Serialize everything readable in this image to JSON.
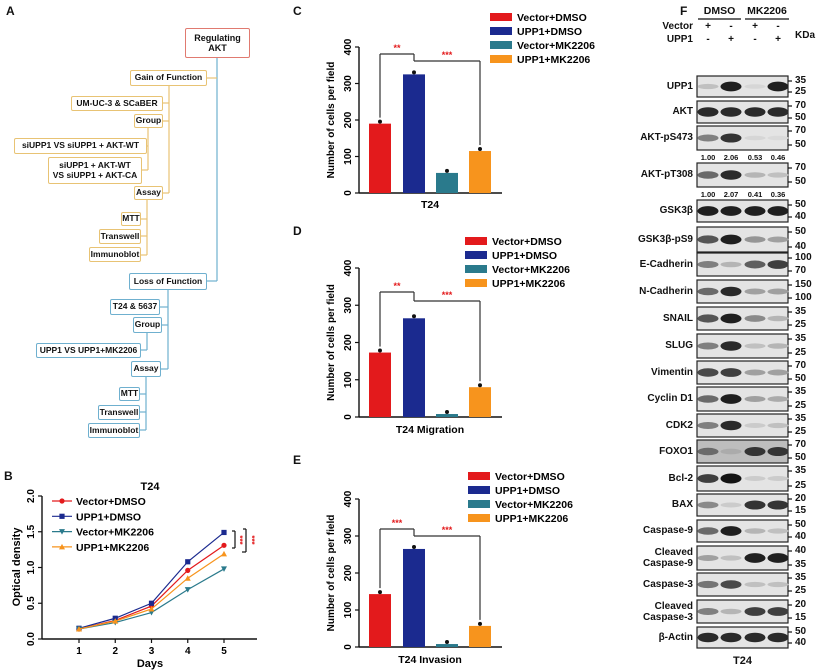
{
  "panel_labels": [
    "A",
    "B",
    "C",
    "D",
    "E",
    "F"
  ],
  "panel_a": {
    "boxes": [
      {
        "text": "Regulating\nAKT",
        "group": "root"
      },
      {
        "text": "Gain of Function",
        "group": "gain"
      },
      {
        "text": "UM-UC-3 & SCaBER",
        "group": "gain"
      },
      {
        "text": "Group",
        "group": "gain"
      },
      {
        "text": "siUPP1 VS siUPP1 + AKT-WT",
        "group": "gain"
      },
      {
        "text": "siUPP1 + AKT-WT\nVS siUPP1 + AKT-CA",
        "group": "gain"
      },
      {
        "text": "Assay",
        "group": "gain"
      },
      {
        "text": "MTT",
        "group": "gain"
      },
      {
        "text": "Transwell",
        "group": "gain"
      },
      {
        "text": "Immunoblot",
        "group": "gain"
      },
      {
        "text": "Loss of Function",
        "group": "loss"
      },
      {
        "text": "T24 & 5637",
        "group": "loss"
      },
      {
        "text": "Group",
        "group": "loss"
      },
      {
        "text": "UPP1 VS UPP1+MK2206",
        "group": "loss"
      },
      {
        "text": "Assay",
        "group": "loss"
      },
      {
        "text": "MTT",
        "group": "loss"
      },
      {
        "text": "Transwell",
        "group": "loss"
      },
      {
        "text": "Immunoblot",
        "group": "loss"
      }
    ],
    "colors": {
      "root": "#e07a70",
      "gain": "#e8c374",
      "loss": "#6fb0cf"
    }
  },
  "colors": {
    "Vector+DMSO": "#e31a1c",
    "UPP1+DMSO": "#1b2a8f",
    "Vector+MK2206": "#2a7a8c",
    "UPP1+MK2206": "#f7941d",
    "significance": "#e31a1c"
  },
  "chart_data": [
    {
      "panel": "B",
      "type": "line",
      "title": "T24",
      "xlabel": "Days",
      "ylabel": "Optical density",
      "x": [
        1,
        2,
        3,
        4,
        5
      ],
      "xticks": [
        "1",
        "2",
        "3",
        "4",
        "5"
      ],
      "yticks": [
        "0.0",
        "0.5",
        "1.0",
        "1.5",
        "2.0"
      ],
      "ylim": [
        0,
        2
      ],
      "legend": "top-left",
      "significance": [
        "***",
        "***"
      ],
      "series": [
        {
          "name": "Vector+DMSO",
          "marker": "circle",
          "values": [
            0.14,
            0.26,
            0.46,
            0.96,
            1.31
          ]
        },
        {
          "name": "UPP1+DMSO",
          "marker": "square",
          "values": [
            0.15,
            0.29,
            0.5,
            1.08,
            1.49
          ]
        },
        {
          "name": "Vector+MK2206",
          "marker": "triangle-down",
          "values": [
            0.14,
            0.23,
            0.37,
            0.69,
            0.98
          ]
        },
        {
          "name": "UPP1+MK2206",
          "marker": "triangle-up",
          "values": [
            0.14,
            0.25,
            0.42,
            0.85,
            1.19
          ]
        }
      ]
    },
    {
      "panel": "C",
      "type": "bar",
      "xlabel": "T24",
      "ylabel": "Number of cells per field",
      "ylim": [
        0,
        400
      ],
      "yticks": [
        "0",
        "100",
        "200",
        "300",
        "400"
      ],
      "legend": "top-right",
      "categories": [
        "Vector+DMSO",
        "UPP1+DMSO",
        "Vector+MK2206",
        "UPP1+MK2206"
      ],
      "values": [
        190,
        325,
        55,
        115
      ],
      "significance": [
        "**",
        "***"
      ]
    },
    {
      "panel": "D",
      "type": "bar",
      "xlabel": "T24 Migration",
      "ylabel": "Number of cells per field",
      "ylim": [
        0,
        400
      ],
      "yticks": [
        "0",
        "100",
        "200",
        "300",
        "400"
      ],
      "legend": "top-right",
      "categories": [
        "Vector+DMSO",
        "UPP1+DMSO",
        "Vector+MK2206",
        "UPP1+MK2206"
      ],
      "values": [
        173,
        265,
        8,
        80
      ],
      "significance": [
        "**",
        "***"
      ]
    },
    {
      "panel": "E",
      "type": "bar",
      "xlabel": "T24 Invasion",
      "ylabel": "Number of cells per field",
      "ylim": [
        0,
        400
      ],
      "yticks": [
        "0",
        "100",
        "200",
        "300",
        "400"
      ],
      "legend": "top-right",
      "categories": [
        "Vector+DMSO",
        "UPP1+DMSO",
        "Vector+MK2206",
        "UPP1+MK2206"
      ],
      "values": [
        143,
        265,
        8,
        57
      ],
      "significance": [
        "***",
        "***"
      ]
    }
  ],
  "western_blot": {
    "groups": [
      "DMSO",
      "MK2206"
    ],
    "rows_header": [
      {
        "label": "Vector",
        "lanes": [
          "+",
          "-",
          "+",
          "-"
        ]
      },
      {
        "label": "UPP1",
        "lanes": [
          "-",
          "+",
          "-",
          "+"
        ]
      }
    ],
    "kda_label": "KDa",
    "cell_line": "T24",
    "blots": [
      {
        "label": "UPP1",
        "kda": [
          "35",
          "25"
        ],
        "intensity": [
          0.2,
          0.95,
          0.1,
          0.95
        ]
      },
      {
        "label": "AKT",
        "kda": [
          "70",
          "50"
        ],
        "intensity": [
          0.9,
          0.9,
          0.9,
          0.9
        ]
      },
      {
        "label": "AKT-pS473",
        "kda": [
          "70",
          "50"
        ],
        "intensity": [
          0.5,
          0.85,
          0.1,
          0.08
        ],
        "quant": [
          "1.00",
          "2.06",
          "0.53",
          "0.46"
        ]
      },
      {
        "label": "AKT-pT308",
        "kda": [
          "70",
          "50"
        ],
        "intensity": [
          0.6,
          0.9,
          0.25,
          0.2
        ],
        "quant": [
          "1.00",
          "2.07",
          "0.41",
          "0.36"
        ]
      },
      {
        "label": "GSK3β",
        "kda": [
          "50",
          "40"
        ],
        "intensity": [
          0.95,
          0.95,
          0.95,
          0.95
        ]
      },
      {
        "label": "GSK3β-pS9",
        "kda": [
          "50",
          "40"
        ],
        "intensity": [
          0.7,
          0.95,
          0.4,
          0.35
        ]
      },
      {
        "label": "E-Cadherin",
        "kda": [
          "100",
          "70"
        ],
        "intensity": [
          0.5,
          0.25,
          0.65,
          0.8
        ]
      },
      {
        "label": "N-Cadherin",
        "kda": [
          "150",
          "100"
        ],
        "intensity": [
          0.6,
          0.9,
          0.35,
          0.35
        ]
      },
      {
        "label": "SNAIL",
        "kda": [
          "35",
          "25"
        ],
        "intensity": [
          0.7,
          0.95,
          0.45,
          0.25
        ]
      },
      {
        "label": "SLUG",
        "kda": [
          "35",
          "25"
        ],
        "intensity": [
          0.5,
          0.9,
          0.2,
          0.25
        ]
      },
      {
        "label": "Vimentin",
        "kda": [
          "70",
          "50"
        ],
        "intensity": [
          0.75,
          0.8,
          0.35,
          0.35
        ]
      },
      {
        "label": "Cyclin D1",
        "kda": [
          "35",
          "25"
        ],
        "intensity": [
          0.6,
          0.95,
          0.35,
          0.3
        ]
      },
      {
        "label": "CDK2",
        "kda": [
          "35",
          "25"
        ],
        "intensity": [
          0.5,
          0.9,
          0.15,
          0.2
        ]
      },
      {
        "label": "FOXO1",
        "kda": [
          "70",
          "50"
        ],
        "intensity": [
          0.6,
          0.3,
          0.85,
          0.85
        ]
      },
      {
        "label": "Bcl-2",
        "kda": [
          "35",
          "25"
        ],
        "intensity": [
          0.8,
          1.0,
          0.15,
          0.15
        ]
      },
      {
        "label": "BAX",
        "kda": [
          "20",
          "15"
        ],
        "intensity": [
          0.45,
          0.15,
          0.85,
          0.85
        ]
      },
      {
        "label": "Caspase-9",
        "kda": [
          "50",
          "40"
        ],
        "intensity": [
          0.6,
          0.95,
          0.25,
          0.2
        ]
      },
      {
        "label": "Cleaved\nCaspase-9",
        "kda": [
          "40",
          "35"
        ],
        "intensity": [
          0.35,
          0.2,
          0.95,
          0.95
        ]
      },
      {
        "label": "Caspase-3",
        "kda": [
          "35",
          "25"
        ],
        "intensity": [
          0.55,
          0.75,
          0.2,
          0.2
        ]
      },
      {
        "label": "Cleaved\nCaspase-3",
        "kda": [
          "20",
          "15"
        ],
        "intensity": [
          0.5,
          0.25,
          0.8,
          0.8
        ]
      },
      {
        "label": "β-Actin",
        "kda": [
          "50",
          "40"
        ],
        "intensity": [
          0.9,
          0.9,
          0.9,
          0.9
        ]
      }
    ]
  }
}
